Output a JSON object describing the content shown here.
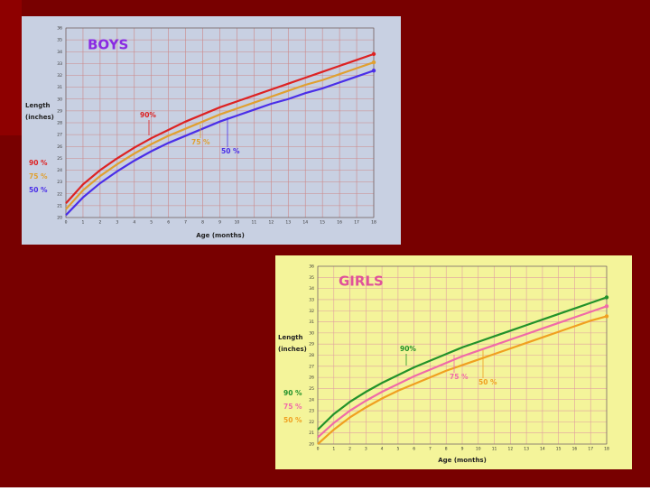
{
  "chart_data": [
    {
      "type": "line",
      "title": "BOYS",
      "title_color": "#8a2be2",
      "background": "#c8d0e2",
      "grid_color": "#cc8888",
      "ylabel": [
        "Length",
        "(inches)"
      ],
      "xlabel": "Age (months)",
      "x": [
        0,
        1,
        2,
        3,
        4,
        5,
        6,
        7,
        8,
        9,
        10,
        11,
        12,
        13,
        14,
        15,
        16,
        17,
        18
      ],
      "xlim": [
        0,
        18
      ],
      "xticks": [
        0,
        1,
        2,
        3,
        4,
        5,
        6,
        7,
        8,
        9,
        10,
        11,
        12,
        13,
        14,
        15,
        16,
        17,
        18
      ],
      "ylim": [
        20,
        36
      ],
      "yticks": [
        20,
        21,
        22,
        23,
        24,
        25,
        26,
        27,
        28,
        29,
        30,
        31,
        32,
        33,
        34,
        35,
        36
      ],
      "grid": true,
      "series": [
        {
          "name": "90 %",
          "color": "#dd2222",
          "values": [
            21.2,
            22.8,
            24.0,
            25.0,
            25.9,
            26.7,
            27.4,
            28.1,
            28.7,
            29.3,
            29.8,
            30.3,
            30.8,
            31.3,
            31.8,
            32.3,
            32.8,
            33.3,
            33.8
          ]
        },
        {
          "name": "75 %",
          "color": "#e0a030",
          "values": [
            20.7,
            22.3,
            23.5,
            24.5,
            25.4,
            26.2,
            26.9,
            27.5,
            28.1,
            28.7,
            29.2,
            29.7,
            30.2,
            30.7,
            31.2,
            31.6,
            32.1,
            32.6,
            33.1
          ]
        },
        {
          "name": "50 %",
          "color": "#4a2ee8",
          "values": [
            20.2,
            21.7,
            22.9,
            23.9,
            24.8,
            25.6,
            26.3,
            26.9,
            27.5,
            28.1,
            28.6,
            29.1,
            29.6,
            30.0,
            30.5,
            30.9,
            31.4,
            31.9,
            32.4
          ]
        }
      ],
      "annotations": [
        "90%",
        "75 %",
        "50 %"
      ]
    },
    {
      "type": "line",
      "title": "GIRLS",
      "title_color": "#e0529a",
      "background": "#f4f49a",
      "grid_color": "#e0a0a0",
      "ylabel": [
        "Length",
        "(inches)"
      ],
      "xlabel": "Age (months)",
      "x": [
        0,
        1,
        2,
        3,
        4,
        5,
        6,
        7,
        8,
        9,
        10,
        11,
        12,
        13,
        14,
        15,
        16,
        17,
        18
      ],
      "xlim": [
        0,
        18
      ],
      "xticks": [
        0,
        1,
        2,
        3,
        4,
        5,
        6,
        7,
        8,
        9,
        10,
        11,
        12,
        13,
        14,
        15,
        16,
        17,
        18
      ],
      "ylim": [
        20,
        36
      ],
      "yticks": [
        20,
        21,
        22,
        23,
        24,
        25,
        26,
        27,
        28,
        29,
        30,
        31,
        32,
        33,
        34,
        35,
        36
      ],
      "grid": true,
      "series": [
        {
          "name": "90 %",
          "color": "#22922a",
          "values": [
            21.3,
            22.7,
            23.8,
            24.7,
            25.5,
            26.2,
            26.9,
            27.5,
            28.1,
            28.7,
            29.2,
            29.7,
            30.2,
            30.7,
            31.2,
            31.7,
            32.2,
            32.7,
            33.2
          ]
        },
        {
          "name": "75 %",
          "color": "#f06aa8",
          "values": [
            20.6,
            21.9,
            23.0,
            23.9,
            24.7,
            25.4,
            26.1,
            26.7,
            27.3,
            27.9,
            28.4,
            28.9,
            29.4,
            29.9,
            30.4,
            30.9,
            31.4,
            31.9,
            32.4
          ]
        },
        {
          "name": "50 %",
          "color": "#f0a020",
          "values": [
            20.0,
            21.3,
            22.4,
            23.3,
            24.1,
            24.8,
            25.4,
            26.0,
            26.6,
            27.1,
            27.6,
            28.1,
            28.6,
            29.1,
            29.6,
            30.1,
            30.6,
            31.1,
            31.5
          ]
        }
      ],
      "annotations": [
        "90%",
        "75 %",
        "50 %"
      ]
    }
  ]
}
